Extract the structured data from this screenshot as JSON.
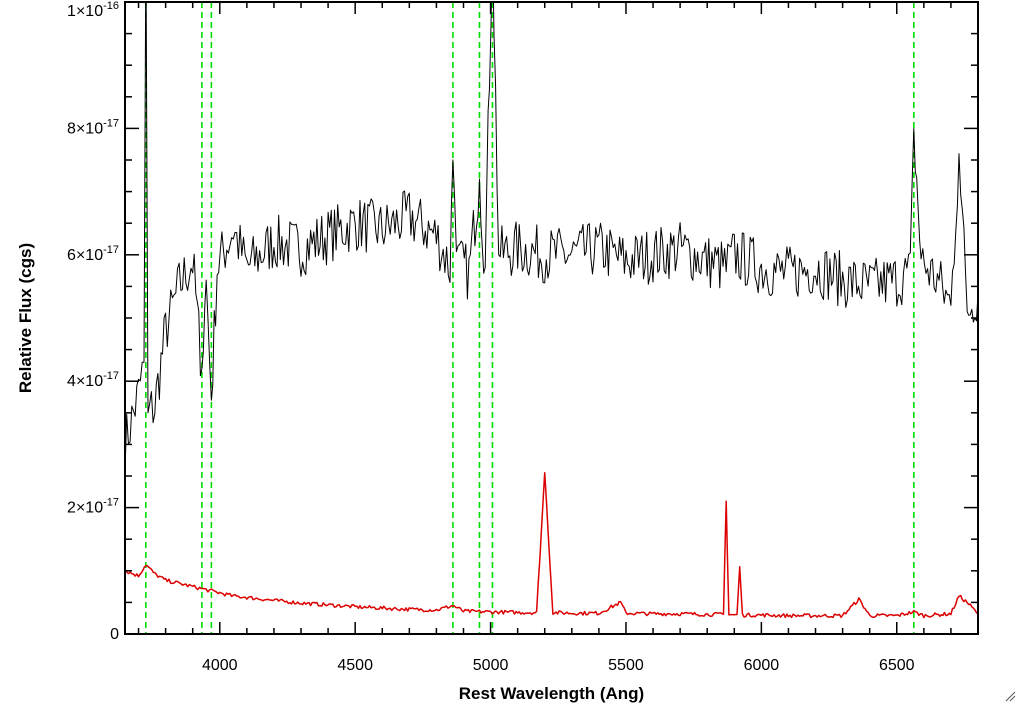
{
  "chart_data": {
    "type": "line",
    "xlabel": "Rest Wavelength (Ang)",
    "ylabel": "Relative Flux (cgs)",
    "xlim": [
      3650,
      6800
    ],
    "ylim": [
      0,
      1e-16
    ],
    "x_ticks": [
      {
        "value": 4000,
        "label": "4000"
      },
      {
        "value": 4500,
        "label": "4500"
      },
      {
        "value": 5000,
        "label": "5000"
      },
      {
        "value": 5500,
        "label": "5500"
      },
      {
        "value": 6000,
        "label": "6000"
      },
      {
        "value": 6500,
        "label": "6500"
      }
    ],
    "y_ticks": [
      {
        "value": 0,
        "mantissa": "0",
        "exponent": ""
      },
      {
        "value": 2e-17,
        "mantissa": "2×10",
        "exponent": "-17"
      },
      {
        "value": 4e-17,
        "mantissa": "4×10",
        "exponent": "-17"
      },
      {
        "value": 6e-17,
        "mantissa": "6×10",
        "exponent": "-17"
      },
      {
        "value": 8e-17,
        "mantissa": "8×10",
        "exponent": "-17"
      },
      {
        "value": 1e-16,
        "mantissa": "1×10",
        "exponent": "-16"
      }
    ],
    "x_minor_step": 100,
    "y_minor_step": 5e-18,
    "reference_lines": {
      "color": "#00dd00",
      "style": "dashed",
      "x": [
        3727,
        3934,
        3969,
        4861,
        4959,
        5007,
        6563
      ]
    },
    "series": [
      {
        "color": "#000000",
        "x": [
          3650,
          3700,
          3720,
          3727,
          3735,
          3760,
          3800,
          3850,
          3900,
          3934,
          3950,
          3969,
          3990,
          4050,
          4100,
          4200,
          4300,
          4400,
          4500,
          4600,
          4700,
          4800,
          4850,
          4861,
          4880,
          4920,
          4959,
          4980,
          5007,
          5030,
          5100,
          5200,
          5300,
          5400,
          5500,
          5600,
          5700,
          5800,
          5870,
          5900,
          6000,
          6100,
          6200,
          6300,
          6400,
          6500,
          6550,
          6563,
          6590,
          6650,
          6700,
          6730,
          6760,
          6800
        ],
        "y": [
          3e-17,
          3.8e-17,
          4.3e-17,
          1.1e-16,
          3.5e-17,
          3.6e-17,
          4.8e-17,
          5.5e-17,
          5.9e-17,
          4.2e-17,
          5.6e-17,
          3.7e-17,
          5.8e-17,
          6.4e-17,
          5.8e-17,
          6.2e-17,
          6.1e-17,
          6.3e-17,
          6.5e-17,
          6.4e-17,
          6.6e-17,
          6.3e-17,
          5.8e-17,
          7.5e-17,
          5.9e-17,
          5.7e-17,
          7.2e-17,
          5.8e-17,
          1.1e-16,
          6e-17,
          6.1e-17,
          6e-17,
          6e-17,
          6.1e-17,
          5.9e-17,
          6e-17,
          6.1e-17,
          5.9e-17,
          5.8e-17,
          6e-17,
          5.8e-17,
          5.7e-17,
          5.8e-17,
          5.6e-17,
          5.5e-17,
          5.6e-17,
          5.7e-17,
          8e-17,
          5.9e-17,
          5.6e-17,
          5.2e-17,
          7.6e-17,
          5.1e-17,
          5.4e-17
        ]
      },
      {
        "color": "#dd0000",
        "x": [
          3650,
          3700,
          3727,
          3760,
          3800,
          3850,
          3900,
          3950,
          4000,
          4050,
          4100,
          4200,
          4300,
          4400,
          4470,
          4500,
          4600,
          4700,
          4800,
          4861,
          4900,
          5000,
          5100,
          5170,
          5200,
          5230,
          5300,
          5400,
          5480,
          5500,
          5600,
          5700,
          5800,
          5860,
          5870,
          5880,
          5910,
          5920,
          5930,
          6000,
          6100,
          6200,
          6300,
          6360,
          6400,
          6500,
          6563,
          6600,
          6700,
          6730,
          6760,
          6800
        ],
        "y": [
          1e-17,
          9.2e-18,
          1.1e-17,
          9.5e-18,
          8.5e-18,
          8e-18,
          7.5e-18,
          7e-18,
          6.5e-18,
          6e-18,
          5.8e-18,
          5.3e-18,
          4.9e-18,
          4.6e-18,
          4.4e-18,
          4.3e-18,
          4.1e-18,
          3.9e-18,
          3.8e-18,
          4.5e-18,
          3.6e-18,
          3.5e-18,
          3.4e-18,
          3.4e-18,
          2.55e-17,
          3.4e-18,
          3.3e-18,
          3.3e-18,
          5e-18,
          3.3e-18,
          3.2e-18,
          3.2e-18,
          3.1e-18,
          3.1e-18,
          2.1e-17,
          3.1e-18,
          3e-18,
          1.05e-17,
          3e-18,
          3e-18,
          2.9e-18,
          2.9e-18,
          2.9e-18,
          5.5e-18,
          2.9e-18,
          2.9e-18,
          3.5e-18,
          2.9e-18,
          3.2e-18,
          6e-18,
          5e-18,
          3.2e-18
        ]
      }
    ]
  }
}
